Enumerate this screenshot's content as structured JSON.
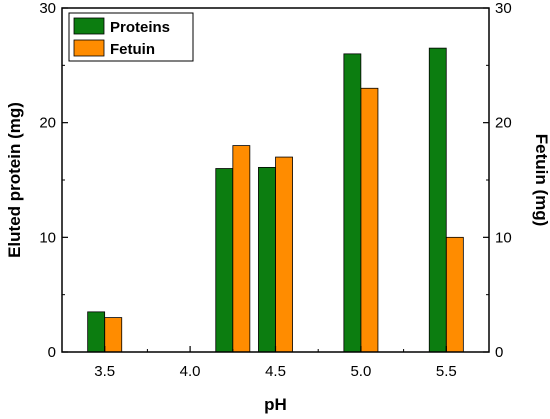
{
  "chart_data": {
    "type": "bar",
    "xlabel": "pH",
    "ylabel_left": "Eluted protein (mg)",
    "ylabel_right": "Fetuin (mg)",
    "xlim": [
      3.25,
      5.75
    ],
    "ylim": [
      0,
      30
    ],
    "x_ticks": [
      3.5,
      4.0,
      4.5,
      5.0,
      5.5
    ],
    "x_tick_labels": [
      "3.5",
      "4.0",
      "4.5",
      "5.0",
      "5.5"
    ],
    "y_ticks": [
      0,
      10,
      20,
      30
    ],
    "y_tick_labels": [
      "0",
      "10",
      "20",
      "30"
    ],
    "legend_position": "top-left",
    "series": [
      {
        "name": "Proteins",
        "color": "#0c7d10",
        "points": [
          {
            "x": 3.45,
            "y": 3.5
          },
          {
            "x": 4.2,
            "y": 16.0
          },
          {
            "x": 4.45,
            "y": 16.1
          },
          {
            "x": 4.95,
            "y": 26.0
          },
          {
            "x": 5.45,
            "y": 26.5
          }
        ]
      },
      {
        "name": "Fetuin",
        "color": "#ff8c00",
        "points": [
          {
            "x": 3.55,
            "y": 3.0
          },
          {
            "x": 4.3,
            "y": 18.0
          },
          {
            "x": 4.55,
            "y": 17.0
          },
          {
            "x": 5.05,
            "y": 23.0
          },
          {
            "x": 5.55,
            "y": 10.0
          }
        ]
      }
    ]
  }
}
